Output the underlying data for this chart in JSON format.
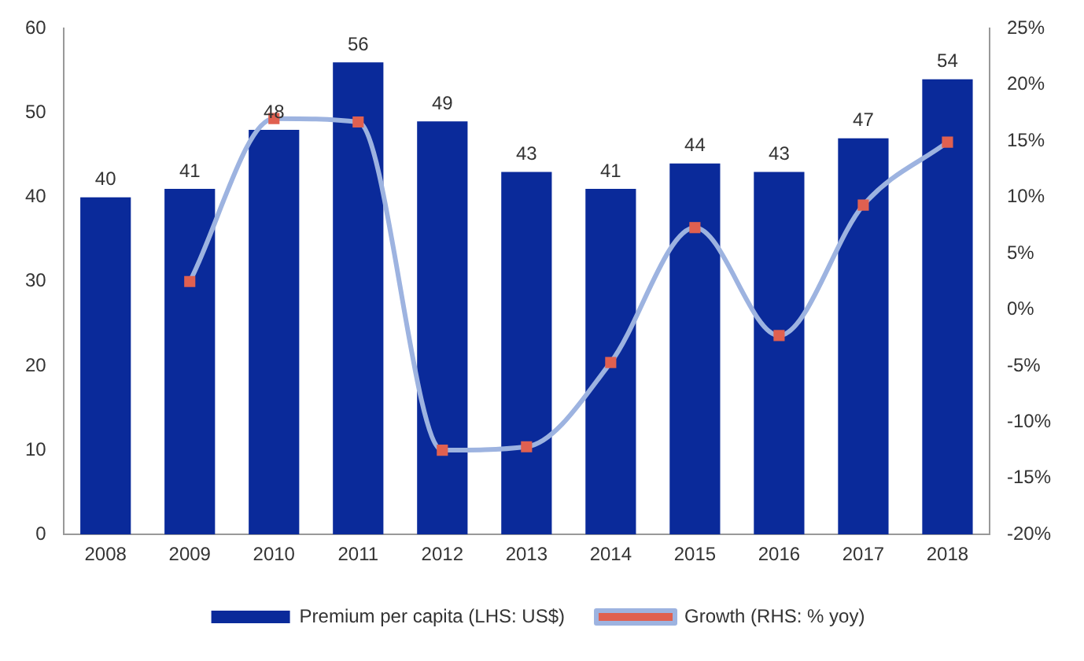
{
  "chart_data": {
    "type": "bar",
    "categories": [
      "2008",
      "2009",
      "2010",
      "2011",
      "2012",
      "2013",
      "2014",
      "2015",
      "2016",
      "2017",
      "2018"
    ],
    "series": [
      {
        "name": "Premium per capita (LHS: US$)",
        "color": "#0a2a9a",
        "values": [
          40,
          41,
          48,
          56,
          49,
          43,
          41,
          44,
          43,
          47,
          54
        ],
        "value_labels": [
          "40",
          "41",
          "48",
          "56",
          "49",
          "43",
          "41",
          "44",
          "43",
          "47",
          "54"
        ]
      },
      {
        "name": "Growth (RHS: % yoy)",
        "type": "line",
        "axis": "y2",
        "color": "#9db3e0",
        "colors": [
          "#e06050",
          "#e06050",
          "#e06050",
          "#e06050",
          "#e06050",
          "#e06050",
          "#e06050",
          "#e06050",
          "#e06050",
          "#e06050",
          "#e06050"
        ],
        "values": [
          null,
          2.5,
          17,
          16.7,
          -12.5,
          -12.2,
          -4.7,
          7.3,
          -2.3,
          9.3,
          14.9
        ]
      }
    ],
    "ylim": [
      0,
      60
    ],
    "yticks": [
      0,
      10,
      20,
      30,
      40,
      50,
      60
    ],
    "y2lim": [
      -20,
      25
    ],
    "y2ticks": [
      {
        "value": -20,
        "label": "-20%"
      },
      {
        "value": -15,
        "label": "-15%"
      },
      {
        "value": -10,
        "label": "-10%"
      },
      {
        "value": -5,
        "label": "-5%"
      },
      {
        "value": 0,
        "label": "0%"
      },
      {
        "value": 5,
        "label": "5%"
      },
      {
        "value": 10,
        "label": "10%"
      },
      {
        "value": 15,
        "label": "15%"
      },
      {
        "value": 20,
        "label": "20%"
      },
      {
        "value": 25,
        "label": "25%"
      }
    ],
    "grid": false,
    "legend": "bottom",
    "marker": "square",
    "line_style": "solid"
  }
}
